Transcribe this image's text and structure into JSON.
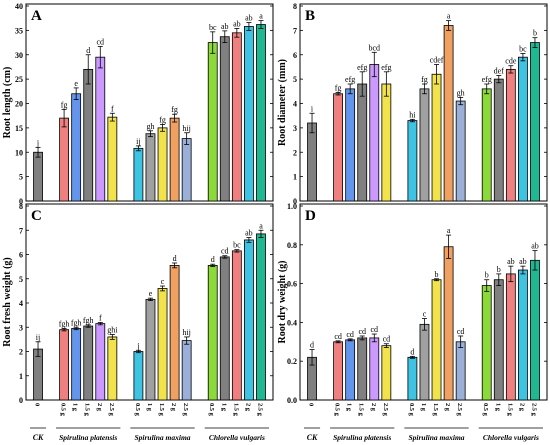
{
  "chart_data": [
    {
      "type": "bar",
      "panel": "A",
      "ylabel": "Root length (cm)",
      "ylim": [
        0,
        40
      ],
      "yticks": [
        0,
        5,
        10,
        15,
        20,
        25,
        30,
        35,
        40
      ],
      "bars": [
        {
          "group": 0,
          "label": "0",
          "value": 10.0,
          "err": 1.0,
          "sig": "j",
          "color": "#808080"
        },
        {
          "group": 1,
          "label": "0.5 g",
          "value": 17.0,
          "err": 1.8,
          "sig": "fg",
          "color": "#f08080"
        },
        {
          "group": 1,
          "label": "1 g",
          "value": 22.0,
          "err": 1.2,
          "sig": "e",
          "color": "#6495ed"
        },
        {
          "group": 1,
          "label": "1.5 g",
          "value": 27.0,
          "err": 3.0,
          "sig": "d",
          "color": "#808080"
        },
        {
          "group": 1,
          "label": "2 g",
          "value": 29.5,
          "err": 2.2,
          "sig": "cd",
          "color": "#cc99ff"
        },
        {
          "group": 1,
          "label": "2.5 g",
          "value": 17.2,
          "err": 0.8,
          "sig": "f",
          "color": "#f2e34d"
        },
        {
          "group": 2,
          "label": "0.5 g",
          "value": 10.8,
          "err": 0.5,
          "sig": "ij",
          "color": "#3ec3e3"
        },
        {
          "group": 2,
          "label": "1 g",
          "value": 13.8,
          "err": 0.6,
          "sig": "gh",
          "color": "#a0a0a0"
        },
        {
          "group": 2,
          "label": "1.5 g",
          "value": 15.0,
          "err": 0.7,
          "sig": "fg",
          "color": "#f2e34d"
        },
        {
          "group": 2,
          "label": "2 g",
          "value": 17.0,
          "err": 0.8,
          "sig": "fg",
          "color": "#f0a060"
        },
        {
          "group": 2,
          "label": "2.5 g",
          "value": 12.8,
          "err": 1.2,
          "sig": "hij",
          "color": "#9ab0d8"
        },
        {
          "group": 3,
          "label": "0.5 g",
          "value": 32.5,
          "err": 2.2,
          "sig": "bc",
          "color": "#8cd93a"
        },
        {
          "group": 3,
          "label": "1 g",
          "value": 33.7,
          "err": 1.2,
          "sig": "ab",
          "color": "#808080"
        },
        {
          "group": 3,
          "label": "1.5 g",
          "value": 34.5,
          "err": 0.9,
          "sig": "ab",
          "color": "#f08080"
        },
        {
          "group": 3,
          "label": "2 g",
          "value": 35.8,
          "err": 0.8,
          "sig": "ab",
          "color": "#3ec3e3"
        },
        {
          "group": 3,
          "label": "2.5 g",
          "value": 36.2,
          "err": 0.8,
          "sig": "a",
          "color": "#20b890"
        }
      ]
    },
    {
      "type": "bar",
      "panel": "B",
      "ylabel": "Root diameter (mm)",
      "ylim": [
        0,
        8
      ],
      "yticks": [
        0,
        1,
        2,
        3,
        4,
        5,
        6,
        7,
        8
      ],
      "bars": [
        {
          "group": 0,
          "label": "0",
          "value": 3.2,
          "err": 0.4,
          "sig": "i",
          "color": "#808080"
        },
        {
          "group": 1,
          "label": "0.5 g",
          "value": 4.4,
          "err": 0.05,
          "sig": "fg",
          "color": "#f08080"
        },
        {
          "group": 1,
          "label": "1 g",
          "value": 4.6,
          "err": 0.2,
          "sig": "efg",
          "color": "#6495ed"
        },
        {
          "group": 1,
          "label": "1.5 g",
          "value": 4.8,
          "err": 0.5,
          "sig": "efg",
          "color": "#808080"
        },
        {
          "group": 1,
          "label": "2 g",
          "value": 5.6,
          "err": 0.5,
          "sig": "bcd",
          "color": "#cc99ff"
        },
        {
          "group": 1,
          "label": "2.5 g",
          "value": 4.8,
          "err": 0.5,
          "sig": "efg",
          "color": "#f2e34d"
        },
        {
          "group": 2,
          "label": "0.5 g",
          "value": 3.3,
          "err": 0.05,
          "sig": "hi",
          "color": "#3ec3e3"
        },
        {
          "group": 2,
          "label": "1 g",
          "value": 4.6,
          "err": 0.2,
          "sig": "fg",
          "color": "#a0a0a0"
        },
        {
          "group": 2,
          "label": "1.5 g",
          "value": 5.2,
          "err": 0.4,
          "sig": "cdef",
          "color": "#f2e34d"
        },
        {
          "group": 2,
          "label": "2 g",
          "value": 7.2,
          "err": 0.2,
          "sig": "a",
          "color": "#f0a060"
        },
        {
          "group": 2,
          "label": "2.5 g",
          "value": 4.1,
          "err": 0.15,
          "sig": "gh",
          "color": "#9ab0d8"
        },
        {
          "group": 3,
          "label": "0.5 g",
          "value": 4.6,
          "err": 0.2,
          "sig": "efg",
          "color": "#8cd93a"
        },
        {
          "group": 3,
          "label": "1 g",
          "value": 5.0,
          "err": 0.15,
          "sig": "def",
          "color": "#808080"
        },
        {
          "group": 3,
          "label": "1.5 g",
          "value": 5.4,
          "err": 0.15,
          "sig": "cde",
          "color": "#f08080"
        },
        {
          "group": 3,
          "label": "2 g",
          "value": 5.9,
          "err": 0.15,
          "sig": "bc",
          "color": "#3ec3e3"
        },
        {
          "group": 3,
          "label": "2.5 g",
          "value": 6.5,
          "err": 0.2,
          "sig": "b",
          "color": "#20b890"
        }
      ]
    },
    {
      "type": "bar",
      "panel": "C",
      "ylabel": "Root fresh weight (g)",
      "ylim": [
        0,
        8
      ],
      "yticks": [
        0,
        1,
        2,
        3,
        4,
        5,
        6,
        7,
        8
      ],
      "bars": [
        {
          "group": 0,
          "label": "0",
          "value": 2.1,
          "err": 0.3,
          "sig": "ij",
          "color": "#808080"
        },
        {
          "group": 1,
          "label": "0.5 g",
          "value": 2.9,
          "err": 0.05,
          "sig": "fgh",
          "color": "#f08080"
        },
        {
          "group": 1,
          "label": "1 g",
          "value": 2.95,
          "err": 0.05,
          "sig": "fgh",
          "color": "#6495ed"
        },
        {
          "group": 1,
          "label": "1.5 g",
          "value": 3.05,
          "err": 0.05,
          "sig": "fgh",
          "color": "#808080"
        },
        {
          "group": 1,
          "label": "2 g",
          "value": 3.15,
          "err": 0.05,
          "sig": "f",
          "color": "#cc99ff"
        },
        {
          "group": 1,
          "label": "2.5 g",
          "value": 2.6,
          "err": 0.1,
          "sig": "ghi",
          "color": "#f2e34d"
        },
        {
          "group": 2,
          "label": "0.5 g",
          "value": 2.0,
          "err": 0.05,
          "sig": "j",
          "color": "#3ec3e3"
        },
        {
          "group": 2,
          "label": "1 g",
          "value": 4.15,
          "err": 0.05,
          "sig": "e",
          "color": "#a0a0a0"
        },
        {
          "group": 2,
          "label": "1.5 g",
          "value": 4.6,
          "err": 0.1,
          "sig": "c",
          "color": "#f2e34d"
        },
        {
          "group": 2,
          "label": "2 g",
          "value": 5.55,
          "err": 0.1,
          "sig": "d",
          "color": "#f0a060"
        },
        {
          "group": 2,
          "label": "2.5 g",
          "value": 2.45,
          "err": 0.15,
          "sig": "hij",
          "color": "#9ab0d8"
        },
        {
          "group": 3,
          "label": "0.5 g",
          "value": 5.55,
          "err": 0.05,
          "sig": "d",
          "color": "#8cd93a"
        },
        {
          "group": 3,
          "label": "1 g",
          "value": 5.9,
          "err": 0.05,
          "sig": "cd",
          "color": "#808080"
        },
        {
          "group": 3,
          "label": "1.5 g",
          "value": 6.15,
          "err": 0.05,
          "sig": "bc",
          "color": "#f08080"
        },
        {
          "group": 3,
          "label": "2 g",
          "value": 6.6,
          "err": 0.1,
          "sig": "ab",
          "color": "#3ec3e3"
        },
        {
          "group": 3,
          "label": "2.5 g",
          "value": 6.85,
          "err": 0.15,
          "sig": "a",
          "color": "#20b890"
        }
      ]
    },
    {
      "type": "bar",
      "panel": "D",
      "ylabel": "Root dry weight (g)",
      "ylim": [
        0,
        1.0
      ],
      "yticks": [
        0,
        0.2,
        0.4,
        0.6,
        0.8,
        1.0
      ],
      "bars": [
        {
          "group": 0,
          "label": "0",
          "value": 0.22,
          "err": 0.04,
          "sig": "d",
          "color": "#808080"
        },
        {
          "group": 1,
          "label": "0.5 g",
          "value": 0.3,
          "err": 0.005,
          "sig": "cd",
          "color": "#f08080"
        },
        {
          "group": 1,
          "label": "1 g",
          "value": 0.31,
          "err": 0.005,
          "sig": "cd",
          "color": "#6495ed"
        },
        {
          "group": 1,
          "label": "1.5 g",
          "value": 0.32,
          "err": 0.01,
          "sig": "cd",
          "color": "#808080"
        },
        {
          "group": 1,
          "label": "2 g",
          "value": 0.32,
          "err": 0.02,
          "sig": "cd",
          "color": "#cc99ff"
        },
        {
          "group": 1,
          "label": "2.5 g",
          "value": 0.28,
          "err": 0.01,
          "sig": "cd",
          "color": "#f2e34d"
        },
        {
          "group": 2,
          "label": "0.5 g",
          "value": 0.22,
          "err": 0.005,
          "sig": "d",
          "color": "#3ec3e3"
        },
        {
          "group": 2,
          "label": "1 g",
          "value": 0.39,
          "err": 0.03,
          "sig": "c",
          "color": "#a0a0a0"
        },
        {
          "group": 2,
          "label": "1.5 g",
          "value": 0.62,
          "err": 0.005,
          "sig": "b",
          "color": "#f2e34d"
        },
        {
          "group": 2,
          "label": "2 g",
          "value": 0.79,
          "err": 0.06,
          "sig": "a",
          "color": "#f0a060"
        },
        {
          "group": 2,
          "label": "2.5 g",
          "value": 0.3,
          "err": 0.03,
          "sig": "cd",
          "color": "#9ab0d8"
        },
        {
          "group": 3,
          "label": "0.5 g",
          "value": 0.59,
          "err": 0.03,
          "sig": "b",
          "color": "#8cd93a"
        },
        {
          "group": 3,
          "label": "1 g",
          "value": 0.62,
          "err": 0.03,
          "sig": "b",
          "color": "#808080"
        },
        {
          "group": 3,
          "label": "1.5 g",
          "value": 0.65,
          "err": 0.04,
          "sig": "ab",
          "color": "#f08080"
        },
        {
          "group": 3,
          "label": "2 g",
          "value": 0.67,
          "err": 0.02,
          "sig": "ab",
          "color": "#3ec3e3"
        },
        {
          "group": 3,
          "label": "2.5 g",
          "value": 0.72,
          "err": 0.05,
          "sig": "ab",
          "color": "#20b890"
        }
      ]
    }
  ],
  "group_labels": [
    "CK",
    "Spirulina platensis",
    "Spirulina maxima",
    "Chlorella vulgaris"
  ],
  "frame_color": "#000000"
}
